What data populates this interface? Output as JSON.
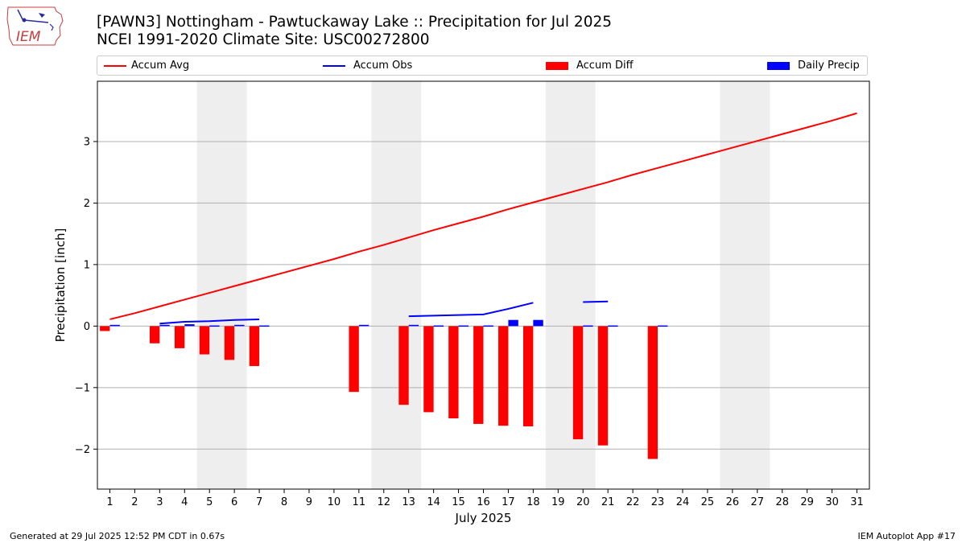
{
  "header": {
    "title_line1": "[PAWN3] Nottingham - Pawtuckaway Lake :: Precipitation for Jul 2025",
    "title_line2": "NCEI 1991-2020 Climate Site: USC00272800"
  },
  "logo": {
    "text": "IEM"
  },
  "footer": {
    "left": "Generated at 29 Jul 2025 12:52 PM CDT in 0.67s",
    "right": "IEM Autoplot App #17"
  },
  "colors": {
    "avg": "#ff0000",
    "obs": "#0000ff",
    "diff": "#ff0000",
    "daily": "#0000ff",
    "weekend": "#eeeeee",
    "grid": "#b0b0b0"
  },
  "chart_data": {
    "type": "bar",
    "xlabel": "July 2025",
    "ylabel": "Precipitation [inch]",
    "xlim": [
      0.5,
      31.5
    ],
    "ylim": [
      -2.65,
      3.98
    ],
    "yticks": [
      -2,
      -1,
      0,
      1,
      2,
      3
    ],
    "ytick_labels": [
      "−2",
      "−1",
      "0",
      "1",
      "2",
      "3"
    ],
    "xticks": [
      1,
      2,
      3,
      4,
      5,
      6,
      7,
      8,
      9,
      10,
      11,
      12,
      13,
      14,
      15,
      16,
      17,
      18,
      19,
      20,
      21,
      22,
      23,
      24,
      25,
      26,
      27,
      28,
      29,
      30,
      31
    ],
    "grid": "y",
    "legend_position": "top",
    "weekend_spans": [
      [
        4.5,
        6.5
      ],
      [
        11.5,
        13.5
      ],
      [
        18.5,
        20.5
      ],
      [
        25.5,
        27.5
      ]
    ],
    "series": [
      {
        "name": "Accum Avg",
        "kind": "line",
        "x": [
          1,
          2,
          3,
          4,
          5,
          6,
          7,
          8,
          9,
          10,
          11,
          12,
          13,
          14,
          15,
          16,
          17,
          18,
          19,
          20,
          21,
          22,
          23,
          24,
          25,
          26,
          27,
          28,
          29,
          30,
          31
        ],
        "values": [
          0.11,
          0.21,
          0.32,
          0.43,
          0.54,
          0.65,
          0.76,
          0.87,
          0.98,
          1.09,
          1.21,
          1.32,
          1.44,
          1.56,
          1.67,
          1.78,
          1.9,
          2.01,
          2.12,
          2.23,
          2.34,
          2.46,
          2.57,
          2.68,
          2.79,
          2.9,
          3.01,
          3.12,
          3.23,
          3.34,
          3.46
        ]
      },
      {
        "name": "Accum Obs",
        "kind": "line",
        "segments": [
          {
            "x": [
              3,
              4,
              5,
              6,
              7
            ],
            "values": [
              0.04,
              0.07,
              0.08,
              0.1,
              0.11
            ]
          },
          {
            "x": [
              13,
              14,
              15,
              16,
              17,
              18
            ],
            "values": [
              0.16,
              0.17,
              0.18,
              0.19,
              0.28,
              0.38
            ]
          },
          {
            "x": [
              20,
              21
            ],
            "values": [
              0.39,
              0.4
            ]
          }
        ]
      },
      {
        "name": "Accum Diff",
        "kind": "bar",
        "x": [
          1,
          3,
          4,
          5,
          6,
          7,
          11,
          13,
          14,
          15,
          16,
          17,
          18,
          20,
          21,
          23
        ],
        "values": [
          -0.08,
          -0.28,
          -0.36,
          -0.46,
          -0.55,
          -0.65,
          -1.07,
          -1.28,
          -1.4,
          -1.5,
          -1.59,
          -1.62,
          -1.63,
          -1.84,
          -1.94,
          -2.16
        ]
      },
      {
        "name": "Daily Precip",
        "kind": "bar",
        "x": [
          1,
          3,
          4,
          5,
          6,
          7,
          11,
          13,
          14,
          15,
          16,
          17,
          18,
          20,
          21,
          23
        ],
        "values": [
          0.02,
          0.02,
          0.03,
          0.01,
          0.02,
          0.01,
          0.02,
          0.02,
          0.01,
          0.01,
          0.01,
          0.1,
          0.1,
          0.01,
          0.01,
          0.01
        ]
      }
    ]
  }
}
